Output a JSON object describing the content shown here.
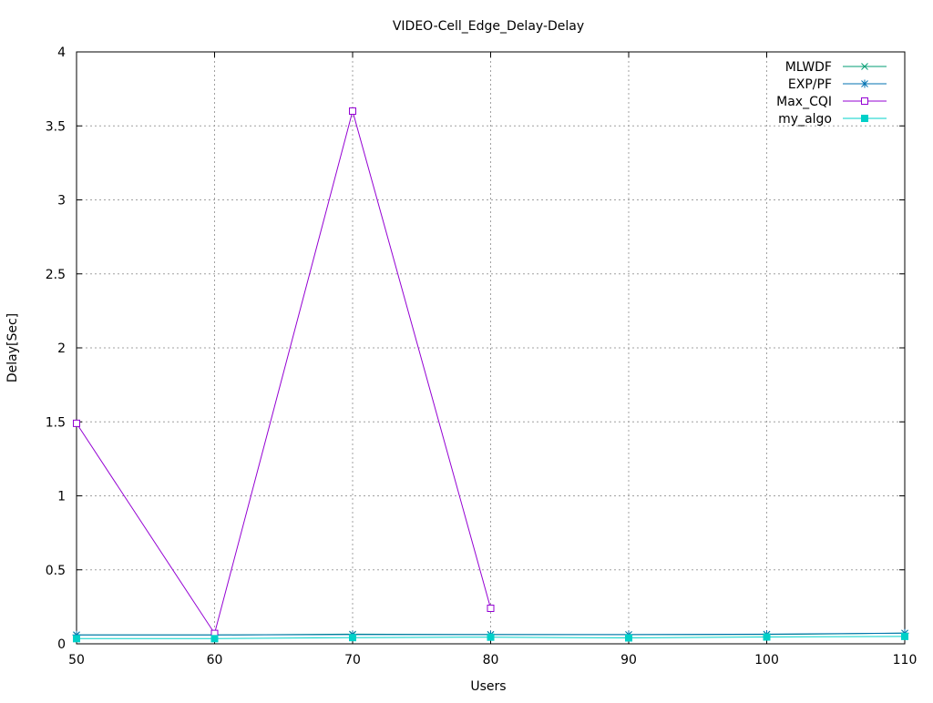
{
  "chart_data": {
    "type": "line",
    "title": "VIDEO-Cell_Edge_Delay-Delay",
    "xlabel": "Users",
    "ylabel": "Delay[Sec]",
    "xlim": [
      50,
      110
    ],
    "ylim": [
      0,
      4
    ],
    "x_ticks": [
      "50",
      "60",
      "70",
      "80",
      "90",
      "100",
      "110"
    ],
    "y_ticks": [
      "0",
      "0.5",
      "1",
      "1.5",
      "2",
      "2.5",
      "3",
      "3.5",
      "4"
    ],
    "grid": true,
    "legend_position": "top-right",
    "series": [
      {
        "name": "MLWDF",
        "color": "#009e73",
        "marker": "x",
        "x": [
          50,
          60,
          70,
          80,
          90,
          100,
          110
        ],
        "y": [
          0.06,
          0.06,
          0.065,
          0.063,
          0.062,
          0.063,
          0.072
        ]
      },
      {
        "name": "EXP/PF",
        "color": "#0072b2",
        "marker": "asterisk",
        "x": [
          50,
          60,
          70,
          80,
          90,
          100,
          110
        ],
        "y": [
          0.06,
          0.06,
          0.062,
          0.062,
          0.062,
          0.065,
          0.072
        ]
      },
      {
        "name": "Max_CQI",
        "color": "#9400d3",
        "marker": "open-square",
        "x": [
          50,
          60,
          70,
          80
        ],
        "y": [
          1.49,
          0.07,
          3.6,
          0.24
        ]
      },
      {
        "name": "my_algo",
        "color": "#00d0c8",
        "marker": "filled-square",
        "x": [
          50,
          60,
          70,
          80,
          90,
          100,
          110
        ],
        "y": [
          0.035,
          0.035,
          0.042,
          0.045,
          0.04,
          0.046,
          0.05
        ]
      }
    ]
  }
}
